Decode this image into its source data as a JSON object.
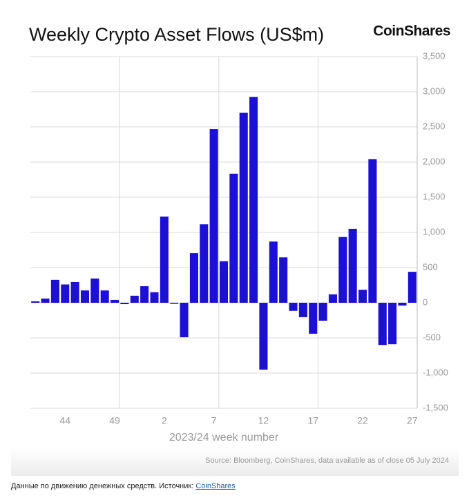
{
  "chart_data": {
    "type": "bar",
    "title": "Weekly Crypto Asset Flows (US$m)",
    "brand": "CoinShares",
    "x_label": "2023/24 week number",
    "source": "Source: Bloomberg, CoinShares, data available as of close 05 July 2024",
    "categories": [
      null,
      null,
      null,
      "44",
      null,
      null,
      null,
      null,
      "49",
      null,
      null,
      null,
      null,
      "2",
      null,
      null,
      null,
      null,
      "7",
      null,
      null,
      null,
      null,
      "12",
      null,
      null,
      null,
      null,
      "17",
      null,
      null,
      null,
      null,
      "22",
      null,
      null,
      null,
      null,
      "27"
    ],
    "values": [
      20,
      60,
      325,
      260,
      295,
      175,
      345,
      175,
      40,
      -20,
      100,
      235,
      150,
      1225,
      -15,
      -490,
      705,
      1115,
      2470,
      590,
      1835,
      2700,
      2925,
      -950,
      870,
      645,
      -115,
      -205,
      -440,
      -255,
      120,
      935,
      1050,
      185,
      2040,
      -600,
      -590,
      -40,
      440
    ],
    "color": "#1b10d4",
    "ylim": [
      -1500,
      3500
    ],
    "yticks": [
      {
        "value": -1500,
        "label": "-1,500"
      },
      {
        "value": -1000,
        "label": "-1,000"
      },
      -500,
      0,
      500,
      {
        "value": 1000,
        "label": "1,000"
      },
      {
        "value": 1500,
        "label": "1,500"
      },
      {
        "value": 2000,
        "label": "2,000"
      },
      {
        "value": 2500,
        "label": "2,500"
      },
      {
        "value": 3000,
        "label": "3,000"
      },
      {
        "value": 3500,
        "label": "3,500"
      }
    ],
    "grid": true
  },
  "caption": {
    "text": "Данные по движению денежных средств. Источник: ",
    "link": "CoinShares"
  }
}
